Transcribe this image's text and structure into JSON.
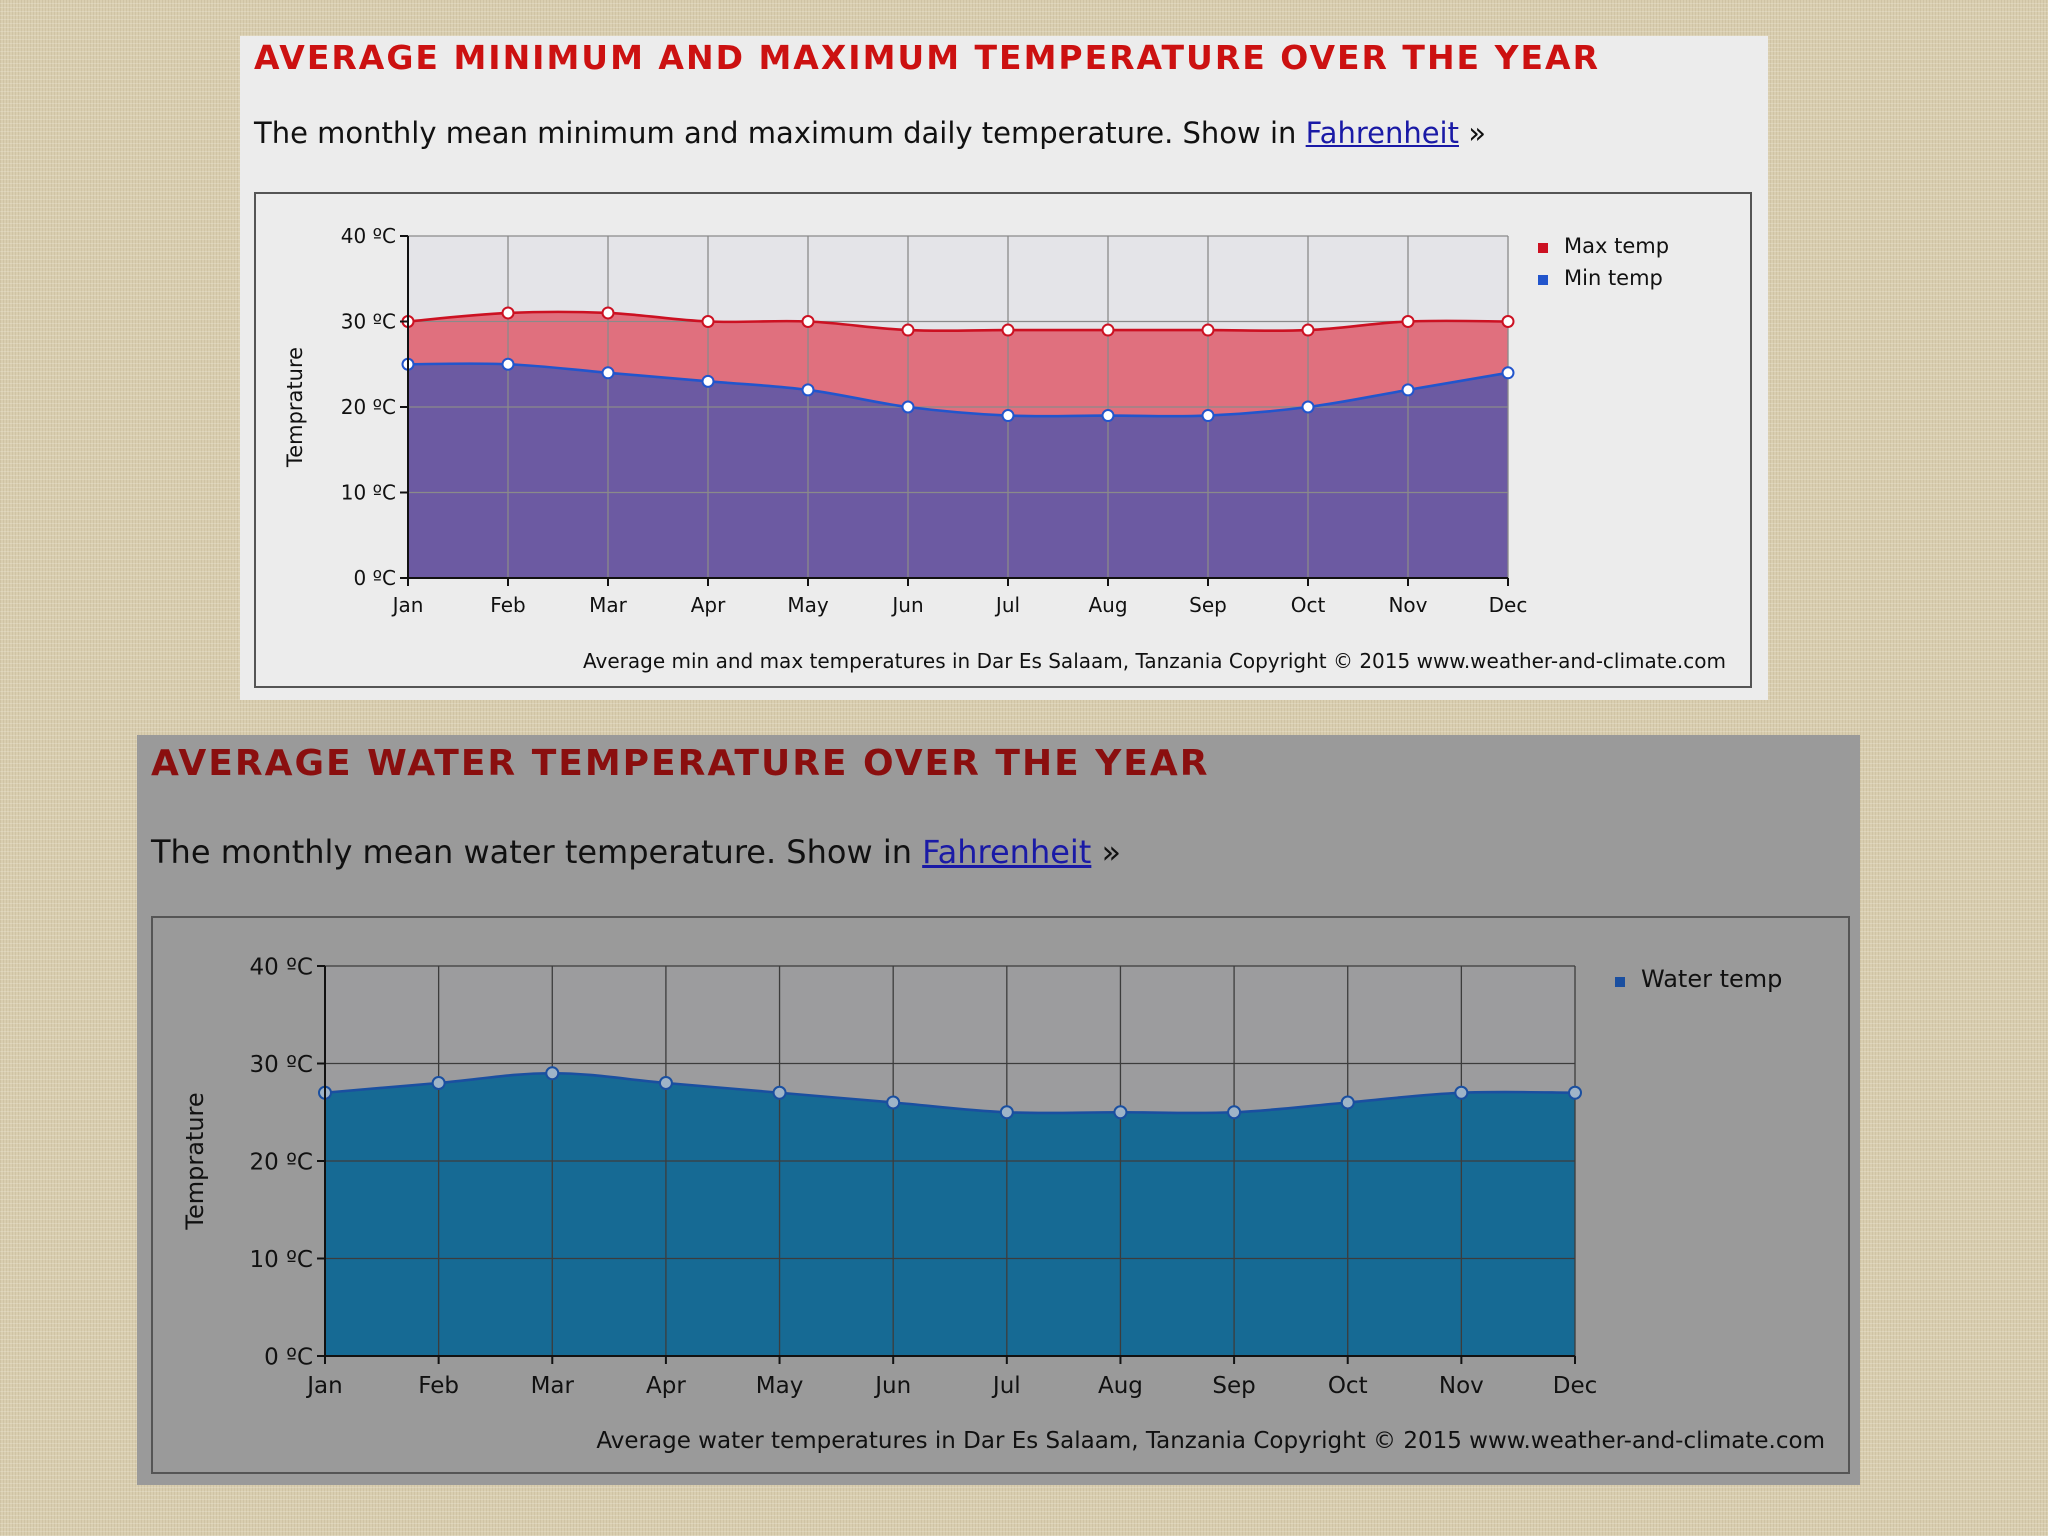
{
  "panels": [
    {
      "title": "AVERAGE MINIMUM AND MAXIMUM TEMPERATURE OVER THE YEAR",
      "subtitle_pre": "The monthly mean minimum and maximum daily temperature. Show in ",
      "link_text": "Fahrenheit",
      "subtitle_post": " »"
    },
    {
      "title": "AVERAGE WATER TEMPERATURE OVER THE YEAR",
      "subtitle_pre": "The monthly mean water temperature. Show in ",
      "link_text": "Fahrenheit",
      "subtitle_post": " »"
    }
  ],
  "chart_data": [
    {
      "type": "area",
      "title": "Average min and max temperatures in Dar Es Salaam, Tanzania",
      "copyright": "Copyright © 2015 www.weather-and-climate.com",
      "ylabel": "Temprature",
      "ylim": [
        0,
        40
      ],
      "yticks": [
        "0 ºC",
        "10 ºC",
        "20 ºC",
        "30 ºC",
        "40 ºC"
      ],
      "categories": [
        "Jan",
        "Feb",
        "Mar",
        "Apr",
        "May",
        "Jun",
        "Jul",
        "Aug",
        "Sep",
        "Oct",
        "Nov",
        "Dec"
      ],
      "series": [
        {
          "name": "Max temp",
          "values": [
            30,
            31,
            31,
            30,
            30,
            29,
            29,
            29,
            29,
            29,
            30,
            30
          ],
          "color": "#cc1122",
          "fill": "#e0707e"
        },
        {
          "name": "Min temp",
          "values": [
            25,
            25,
            24,
            23,
            22,
            20,
            19,
            19,
            19,
            20,
            22,
            24
          ],
          "color": "#2255cc",
          "fill": "#6c5aa2"
        }
      ],
      "legend": "right",
      "grid": true,
      "colors": {
        "plot_bg": "#e4e4e8",
        "grid": "#8a8a8a"
      }
    },
    {
      "type": "area",
      "title": "Average water temperatures in Dar Es Salaam, Tanzania",
      "copyright": "Copyright © 2015 www.weather-and-climate.com",
      "ylabel": "Temprature",
      "ylim": [
        0,
        40
      ],
      "yticks": [
        "0 ºC",
        "10 ºC",
        "20 ºC",
        "30 ºC",
        "40 ºC"
      ],
      "categories": [
        "Jan",
        "Feb",
        "Mar",
        "Apr",
        "May",
        "Jun",
        "Jul",
        "Aug",
        "Sep",
        "Oct",
        "Nov",
        "Dec"
      ],
      "series": [
        {
          "name": "Water temp",
          "values": [
            27,
            28,
            29,
            28,
            27,
            26,
            25,
            25,
            25,
            26,
            27,
            27
          ],
          "color": "#1a4fa0",
          "fill": "#166a94"
        }
      ],
      "legend": "right",
      "grid": true,
      "colors": {
        "plot_bg": "#9c9c9e",
        "grid": "#3c3c3c"
      }
    }
  ]
}
